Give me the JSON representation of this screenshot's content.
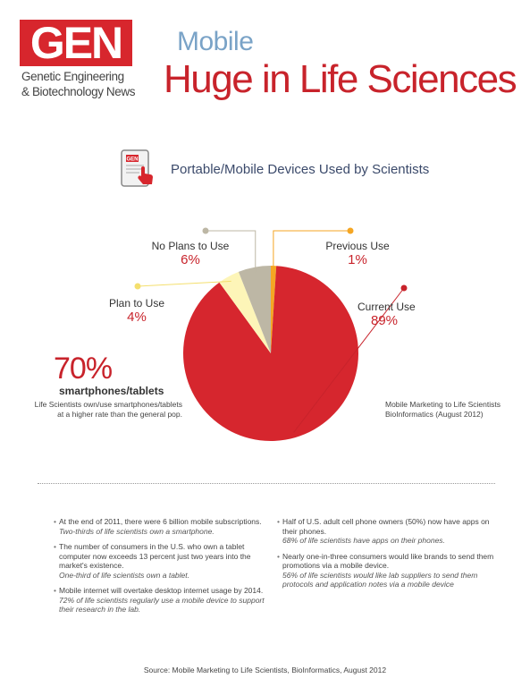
{
  "logo": {
    "text": "GEN",
    "line1": "Genetic Engineering",
    "line2": "& Biotechnology News"
  },
  "title": {
    "small": "Mobile",
    "main": "Huge in Life Sciences"
  },
  "section": {
    "icon": "tablet-touch-icon"
  },
  "chart_data": {
    "type": "pie",
    "title": "Portable/Mobile Devices Used by Scientists",
    "slices": [
      {
        "label": "Current Use",
        "value": 89,
        "display": "89%",
        "color": "#d6262e"
      },
      {
        "label": "Plan to Use",
        "value": 4,
        "display": "4%",
        "color": "#fdf5b8"
      },
      {
        "label": "No Plans to Use",
        "value": 6,
        "display": "6%",
        "color": "#bdb7a5"
      },
      {
        "label": "Previous Use",
        "value": 1,
        "display": "1%",
        "color": "#f5a623"
      }
    ]
  },
  "callout": {
    "value": "70%",
    "label": "smartphones/tablets",
    "description": "Life Scientists own/use smartphones/tablets at a higher rate than the general pop."
  },
  "source_note": "Mobile Marketing to Life Scientists BioInformatics (August 2012)",
  "bullets_left": [
    {
      "text": "At the end of 2011, there were 6 billion mobile subscriptions.",
      "stat": "Two-thirds of life scientists own a smartphone."
    },
    {
      "text": "The number of consumers in the U.S. who own a tablet computer now exceeds 13 percent just two years into the market's existence.",
      "stat": "One-third of life scientists own a tablet."
    },
    {
      "text": "Mobile internet will overtake desktop internet usage by 2014.",
      "stat": "72% of life scientists regularly use a mobile device to support their research in the lab."
    }
  ],
  "bullets_right": [
    {
      "text": "Half of U.S. adult cell phone owners (50%) now have apps on their phones.",
      "stat": "68% of life scientists have apps on their phones."
    },
    {
      "text": "Nearly one-in-three consumers would like brands to send them promotions via a mobile device.",
      "stat": "56% of life scientists would like lab suppliers to send them protocols and application notes via a mobile device"
    }
  ],
  "footer": "Source: Mobile Marketing to Life Scientists, BioInformatics, August 2012"
}
